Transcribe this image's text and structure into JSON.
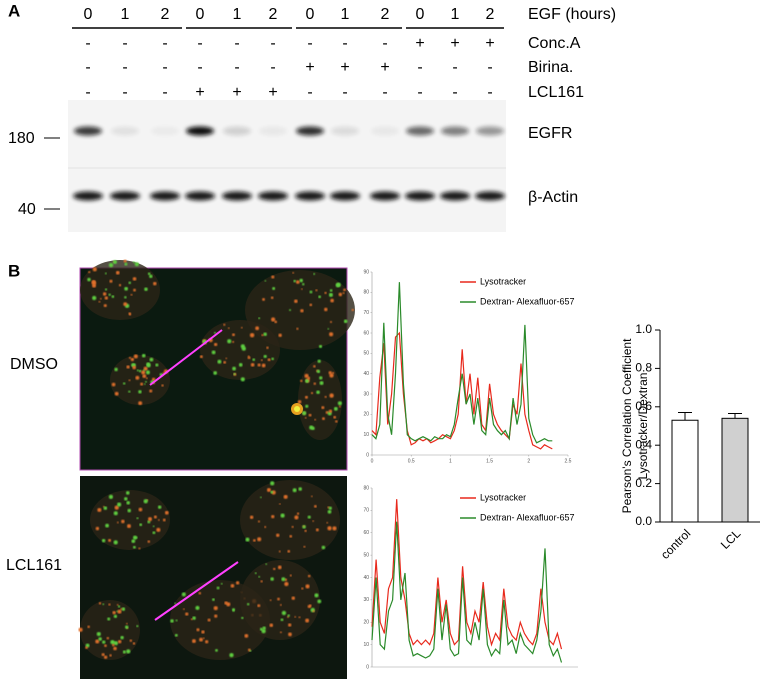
{
  "panel_a": {
    "label": "A",
    "conditions": [
      {
        "name": "EGF (hours)",
        "lanes": [
          "0",
          "1",
          "2",
          "0",
          "1",
          "2",
          "0",
          "1",
          "2",
          "0",
          "1",
          "2"
        ]
      },
      {
        "name": "Conc.A",
        "lanes": [
          "-",
          "-",
          "-",
          "-",
          "-",
          "-",
          "-",
          "-",
          "-",
          "+",
          "+",
          "+"
        ]
      },
      {
        "name": "Birina.",
        "lanes": [
          "-",
          "-",
          "-",
          "-",
          "-",
          "-",
          "+",
          "+",
          "+",
          "-",
          "-",
          "-"
        ]
      },
      {
        "name": "LCL161",
        "lanes": [
          "-",
          "-",
          "-",
          "+",
          "+",
          "+",
          "-",
          "-",
          "-",
          "-",
          "-",
          "-"
        ]
      }
    ],
    "size_markers": [
      "180",
      "40"
    ],
    "proteins": [
      "EGFR",
      "β-Actin"
    ]
  },
  "panel_b": {
    "label": "B",
    "rows": [
      "DMSO",
      "LCL161"
    ]
  },
  "chart_data": [
    {
      "type": "line",
      "xlim": [
        0,
        2.5
      ],
      "xticks": [
        0,
        0.5,
        1,
        1.5,
        2,
        2.5
      ],
      "ylim": [
        0,
        90
      ],
      "yticks": [
        0,
        10,
        20,
        30,
        40,
        50,
        60,
        70,
        80,
        90
      ],
      "x": [
        0,
        0.05,
        0.1,
        0.15,
        0.2,
        0.25,
        0.3,
        0.35,
        0.4,
        0.45,
        0.5,
        0.55,
        0.6,
        0.65,
        0.7,
        0.75,
        0.8,
        0.85,
        0.9,
        0.95,
        1,
        1.05,
        1.1,
        1.15,
        1.2,
        1.25,
        1.3,
        1.35,
        1.4,
        1.45,
        1.5,
        1.55,
        1.6,
        1.65,
        1.7,
        1.75,
        1.8,
        1.85,
        1.9,
        1.95,
        2,
        2.05,
        2.1,
        2.15,
        2.2,
        2.25,
        2.3
      ],
      "series": [
        {
          "name": "Lysotracker",
          "color": "#e8291c",
          "values": [
            12,
            10,
            38,
            55,
            15,
            30,
            58,
            60,
            30,
            12,
            5,
            6,
            8,
            7,
            8,
            6,
            7,
            8,
            10,
            9,
            8,
            12,
            20,
            52,
            25,
            40,
            20,
            38,
            15,
            12,
            35,
            20,
            15,
            12,
            10,
            8,
            25,
            20,
            45,
            20,
            12,
            5,
            4,
            3,
            5,
            4,
            3
          ]
        },
        {
          "name": "Dextran- Alexafluor-657",
          "color": "#2a8a2a",
          "values": [
            10,
            8,
            15,
            65,
            20,
            10,
            40,
            85,
            35,
            10,
            8,
            7,
            8,
            9,
            8,
            7,
            9,
            8,
            8,
            10,
            9,
            15,
            28,
            40,
            25,
            30,
            15,
            28,
            12,
            10,
            28,
            15,
            12,
            10,
            12,
            8,
            28,
            15,
            25,
            64,
            18,
            10,
            6,
            7,
            8,
            7,
            7
          ]
        }
      ]
    },
    {
      "type": "line",
      "xlim": [
        0,
        2.5
      ],
      "ylim": [
        0,
        80
      ],
      "yticks": [
        0,
        10,
        20,
        30,
        40,
        50,
        60,
        70,
        80
      ],
      "x": [
        0,
        0.05,
        0.1,
        0.15,
        0.2,
        0.25,
        0.3,
        0.35,
        0.4,
        0.45,
        0.5,
        0.55,
        0.6,
        0.65,
        0.7,
        0.75,
        0.8,
        0.85,
        0.9,
        0.95,
        1,
        1.05,
        1.1,
        1.15,
        1.2,
        1.25,
        1.3,
        1.35,
        1.4,
        1.45,
        1.5,
        1.55,
        1.6,
        1.65,
        1.7,
        1.75,
        1.8,
        1.85,
        1.9,
        1.95,
        2,
        2.05,
        2.1,
        2.15,
        2.2,
        2.25,
        2.3
      ],
      "series": [
        {
          "name": "Lysotracker",
          "color": "#e8291c",
          "values": [
            18,
            48,
            20,
            15,
            35,
            40,
            75,
            40,
            30,
            15,
            10,
            12,
            10,
            12,
            10,
            15,
            40,
            20,
            30,
            15,
            10,
            12,
            45,
            20,
            15,
            25,
            20,
            38,
            18,
            10,
            15,
            12,
            35,
            18,
            14,
            12,
            20,
            15,
            12,
            10,
            15,
            35,
            20,
            12,
            10,
            15,
            8
          ]
        },
        {
          "name": "Dextran- Alexafluor-657",
          "color": "#2a8a2a",
          "values": [
            12,
            40,
            10,
            8,
            25,
            30,
            65,
            30,
            42,
            12,
            5,
            6,
            5,
            4,
            5,
            8,
            35,
            12,
            28,
            8,
            5,
            6,
            40,
            12,
            10,
            20,
            12,
            35,
            10,
            5,
            8,
            6,
            30,
            10,
            12,
            6,
            15,
            10,
            8,
            6,
            12,
            25,
            53,
            10,
            5,
            8,
            2
          ]
        }
      ]
    },
    {
      "type": "bar",
      "ylabel": [
        "Pearson's Correlation Coefficient",
        "Lysotracker/Dextran"
      ],
      "categories": [
        "control",
        "LCL"
      ],
      "values": [
        0.53,
        0.54
      ],
      "errors": [
        0.04,
        0.025
      ],
      "colors": [
        "#ffffff",
        "#d0d0d0"
      ],
      "ylim": [
        0,
        1
      ],
      "yticks": [
        {
          "value": 0,
          "label": "0.0"
        },
        {
          "value": 0.2,
          "label": "0.2"
        },
        {
          "value": 0.4,
          "label": "0.4"
        },
        {
          "value": 0.6,
          "label": "0.6"
        },
        {
          "value": 0.8,
          "label": "0.8"
        },
        {
          "value": 1,
          "label": "1.0"
        }
      ]
    }
  ]
}
